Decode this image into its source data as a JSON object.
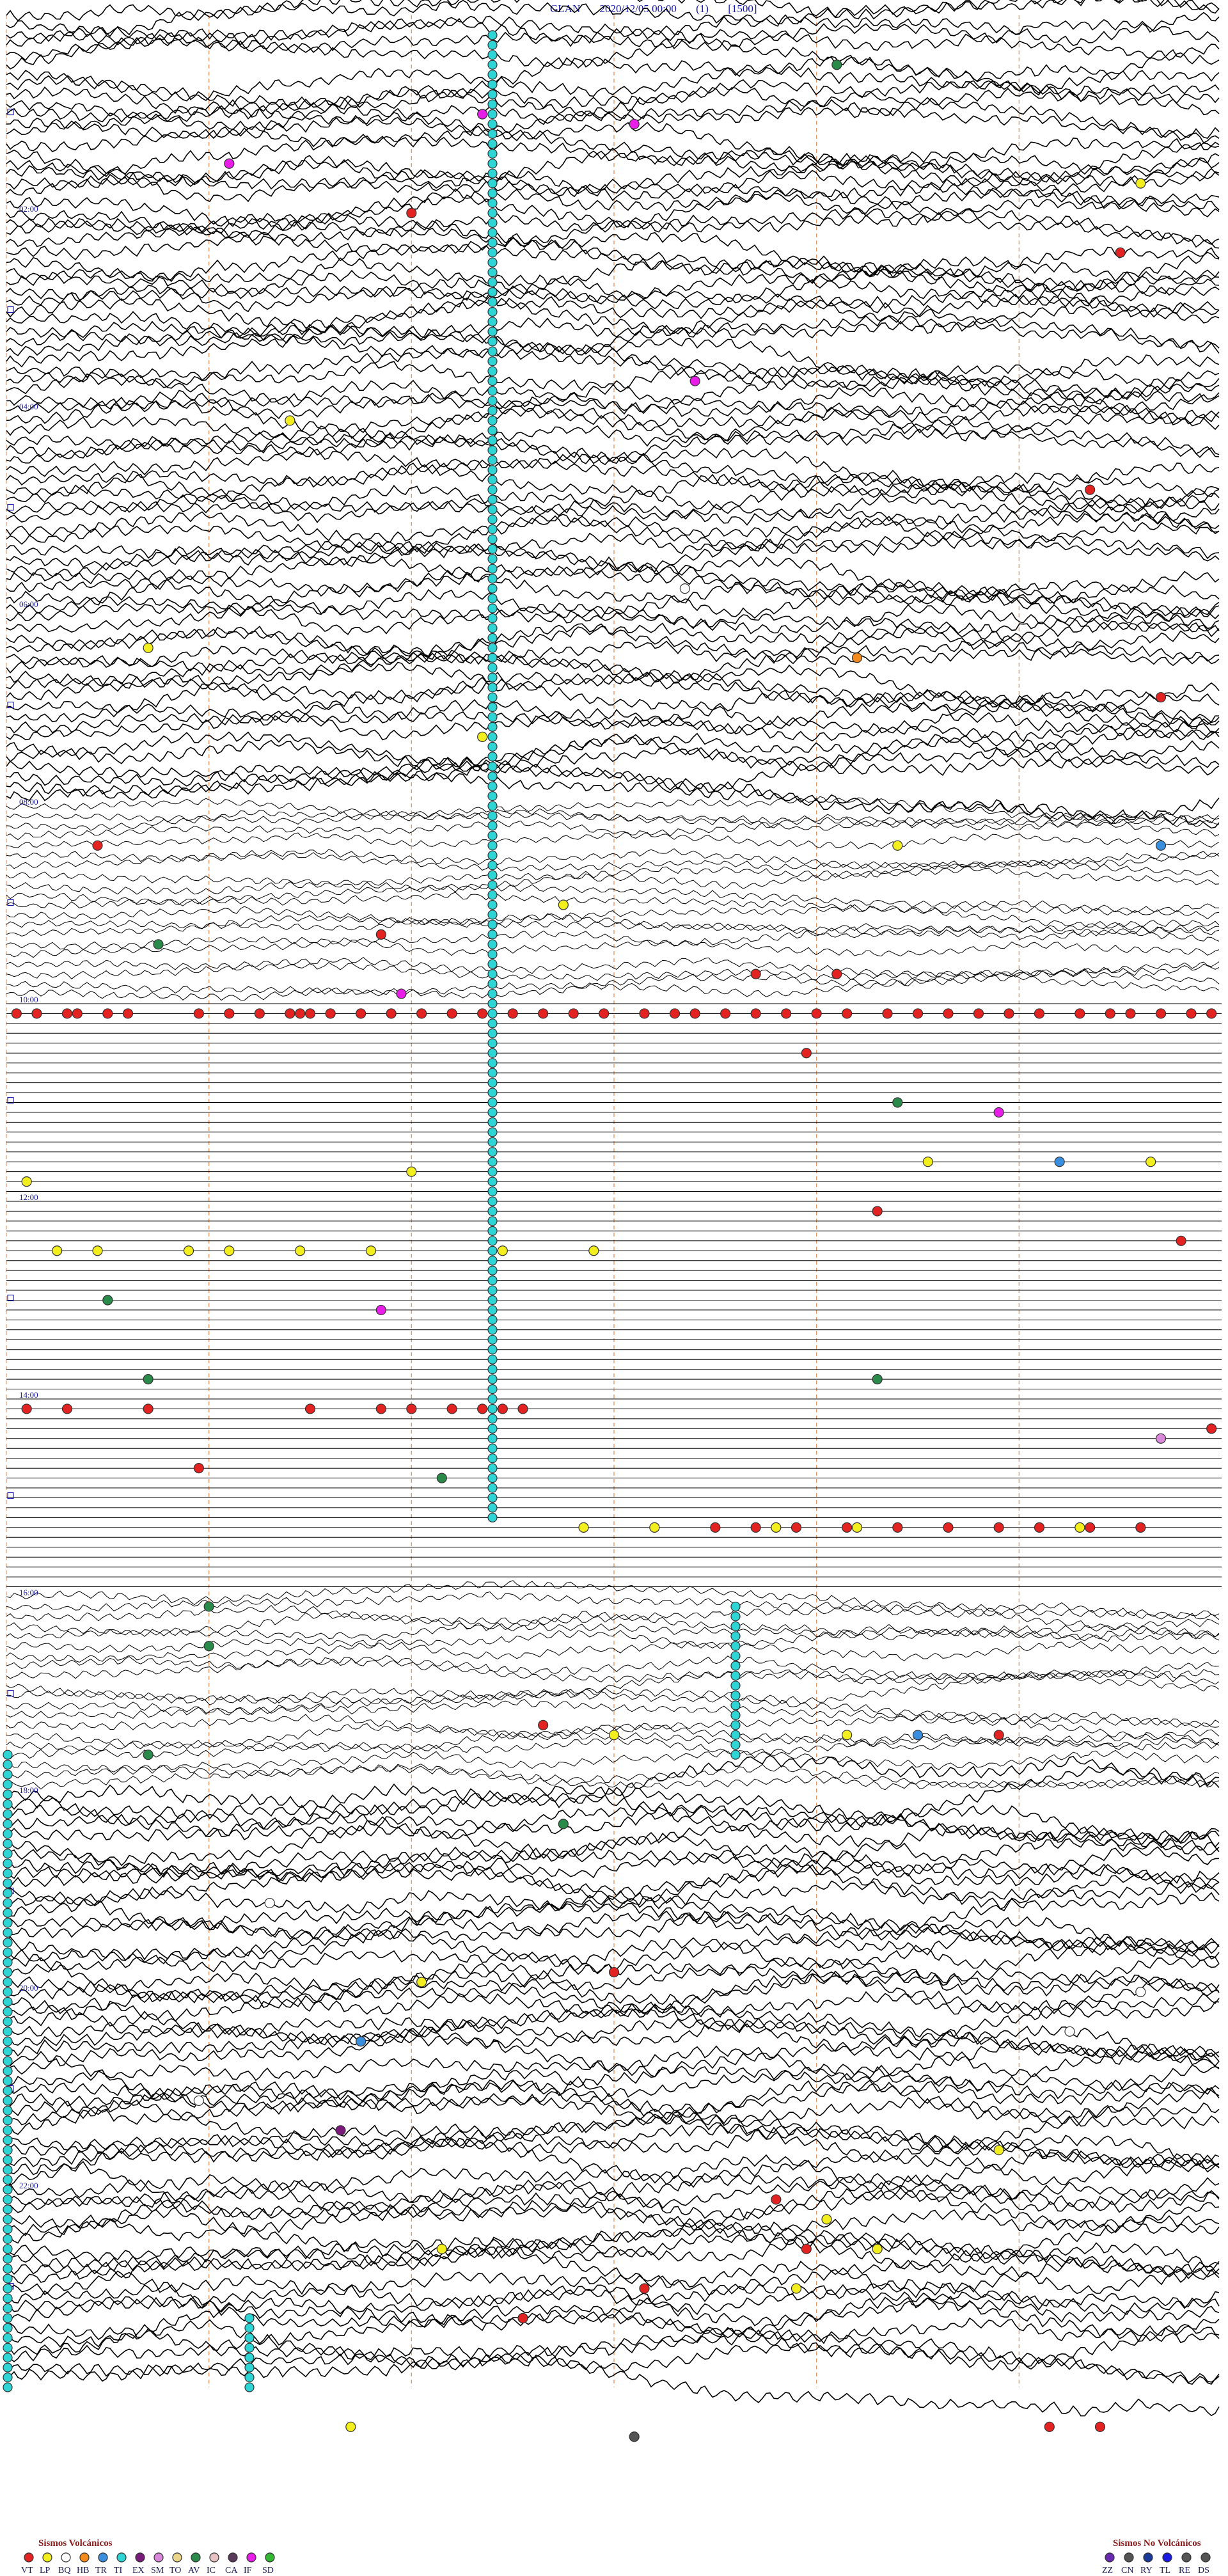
{
  "header": {
    "station": "GLAN",
    "datetime": "2020/12/05 00:00",
    "channel": "(1)",
    "scale": "[1500]"
  },
  "chart_data": {
    "type": "seismogram-helicorder",
    "rows_per_hour": 10,
    "hours": 24,
    "time_labels": [
      "02:00",
      "04:00",
      "06:00",
      "08:00",
      "10:00",
      "12:00",
      "14:00",
      "16:00",
      "18:00",
      "20:00",
      "22:00"
    ],
    "time_label_hours": [
      2,
      4,
      6,
      8,
      10,
      12,
      14,
      16,
      18,
      20,
      22
    ],
    "minute_markers": [
      10,
      20,
      30,
      40,
      50
    ],
    "noise_hours": [
      {
        "from": 0,
        "to": 8,
        "level": 0.9
      },
      {
        "from": 8,
        "to": 10,
        "level": 0.4
      },
      {
        "from": 10,
        "to": 16,
        "level": 0.0
      },
      {
        "from": 16,
        "to": 18,
        "level": 0.5
      },
      {
        "from": 18,
        "to": 24,
        "level": 1.0
      }
    ],
    "event_rows": [
      {
        "hour": 10.1,
        "type": "VT",
        "minutes": [
          0.5,
          1.5,
          3,
          3.5,
          5,
          6,
          9.5,
          11,
          12.5,
          14,
          14.5,
          15,
          16,
          17.5,
          19,
          20.5,
          22,
          23.5,
          25,
          26.5,
          28,
          29.5,
          31.5,
          33,
          34,
          35.5,
          37,
          38.5,
          40,
          41.5,
          43.5,
          45,
          46.5,
          48,
          49.5,
          51,
          53,
          54.5,
          55.5,
          57,
          58.5,
          59.5
        ]
      },
      {
        "hour": 12.5,
        "type": "LP",
        "minutes": [
          2.5,
          4.5,
          9,
          11,
          14.5,
          18,
          24.5,
          29
        ]
      },
      {
        "hour": 14.1,
        "type": "VT",
        "minutes": [
          1,
          3,
          7,
          15,
          18.5,
          20,
          22,
          23.5,
          24.5,
          25.5
        ]
      },
      {
        "hour": 15.3,
        "type": "VT",
        "minutes": [
          35,
          37,
          39,
          41.5,
          44,
          46.5,
          49,
          51,
          53.5,
          56
        ]
      },
      {
        "hour": 15.3,
        "type": "LP",
        "minutes": [
          28.5,
          32,
          38,
          42,
          53
        ]
      }
    ],
    "ti_columns": [
      {
        "minute": 24.0,
        "from_hour": 0.2,
        "to_hour": 15.3
      },
      {
        "minute": 36.0,
        "from_hour": 16.1,
        "to_hour": 17.6
      },
      {
        "minute": 0.0,
        "from_hour": 17.6,
        "to_hour": 24.0
      },
      {
        "minute": 12.0,
        "from_hour": 23.3,
        "to_hour": 24.0
      }
    ],
    "scatter_events": [
      {
        "hour": 0.5,
        "minute": 41,
        "type": "AV"
      },
      {
        "hour": 1.0,
        "minute": 23.5,
        "type": "IF"
      },
      {
        "hour": 1.1,
        "minute": 31,
        "type": "IF"
      },
      {
        "hour": 1.5,
        "minute": 11,
        "type": "IF"
      },
      {
        "hour": 1.7,
        "minute": 56,
        "type": "LP"
      },
      {
        "hour": 2.0,
        "minute": 20,
        "type": "VT"
      },
      {
        "hour": 2.4,
        "minute": 55,
        "type": "VT"
      },
      {
        "hour": 3.7,
        "minute": 34,
        "type": "IF"
      },
      {
        "hour": 4.1,
        "minute": 14,
        "type": "LP"
      },
      {
        "hour": 4.8,
        "minute": 53.5,
        "type": "VT"
      },
      {
        "hour": 5.8,
        "minute": 33.5,
        "type": "BQ"
      },
      {
        "hour": 6.4,
        "minute": 7,
        "type": "LP"
      },
      {
        "hour": 6.5,
        "minute": 42,
        "type": "HB"
      },
      {
        "hour": 6.9,
        "minute": 57,
        "type": "VT"
      },
      {
        "hour": 7.3,
        "minute": 23.5,
        "type": "LP"
      },
      {
        "hour": 8.4,
        "minute": 4.5,
        "type": "VT"
      },
      {
        "hour": 8.4,
        "minute": 44,
        "type": "LP"
      },
      {
        "hour": 8.4,
        "minute": 57,
        "type": "TR"
      },
      {
        "hour": 9.0,
        "minute": 27.5,
        "type": "LP"
      },
      {
        "hour": 9.3,
        "minute": 18.5,
        "type": "VT"
      },
      {
        "hour": 9.4,
        "minute": 7.5,
        "type": "AV"
      },
      {
        "hour": 9.7,
        "minute": 37,
        "type": "VT"
      },
      {
        "hour": 9.7,
        "minute": 41,
        "type": "VT"
      },
      {
        "hour": 9.9,
        "minute": 19.5,
        "type": "IF"
      },
      {
        "hour": 10.5,
        "minute": 39.5,
        "type": "VT"
      },
      {
        "hour": 11.0,
        "minute": 44,
        "type": "AV"
      },
      {
        "hour": 11.1,
        "minute": 49,
        "type": "IF"
      },
      {
        "hour": 11.6,
        "minute": 45.5,
        "type": "LP"
      },
      {
        "hour": 11.6,
        "minute": 52,
        "type": "TR"
      },
      {
        "hour": 11.6,
        "minute": 56.5,
        "type": "LP"
      },
      {
        "hour": 11.8,
        "minute": 1,
        "type": "LP"
      },
      {
        "hour": 11.7,
        "minute": 20,
        "type": "LP"
      },
      {
        "hour": 12.1,
        "minute": 43,
        "type": "VT"
      },
      {
        "hour": 12.4,
        "minute": 58,
        "type": "VT"
      },
      {
        "hour": 13.0,
        "minute": 5,
        "type": "AV"
      },
      {
        "hour": 13.1,
        "minute": 18.5,
        "type": "IF"
      },
      {
        "hour": 13.8,
        "minute": 43,
        "type": "AV"
      },
      {
        "hour": 13.8,
        "minute": 7,
        "type": "AV"
      },
      {
        "hour": 14.3,
        "minute": 59.5,
        "type": "VT"
      },
      {
        "hour": 14.4,
        "minute": 57,
        "type": "SM"
      },
      {
        "hour": 14.7,
        "minute": 9.5,
        "type": "VT"
      },
      {
        "hour": 14.8,
        "minute": 21.5,
        "type": "AV"
      },
      {
        "hour": 16.5,
        "minute": 10,
        "type": "AV"
      },
      {
        "hour": 16.1,
        "minute": 10,
        "type": "AV"
      },
      {
        "hour": 17.3,
        "minute": 26.5,
        "type": "VT"
      },
      {
        "hour": 17.4,
        "minute": 30,
        "type": "LP"
      },
      {
        "hour": 17.4,
        "minute": 41.5,
        "type": "LP"
      },
      {
        "hour": 17.4,
        "minute": 45,
        "type": "TR"
      },
      {
        "hour": 17.4,
        "minute": 49,
        "type": "VT"
      },
      {
        "hour": 17.6,
        "minute": 7,
        "type": "AV"
      },
      {
        "hour": 18.3,
        "minute": 27.5,
        "type": "AV"
      },
      {
        "hour": 19.1,
        "minute": 13,
        "type": "BQ"
      },
      {
        "hour": 19.9,
        "minute": 20.5,
        "type": "LP"
      },
      {
        "hour": 19.8,
        "minute": 30,
        "type": "VT"
      },
      {
        "hour": 20.0,
        "minute": 56,
        "type": "BQ"
      },
      {
        "hour": 20.4,
        "minute": 52.5,
        "type": "BQ"
      },
      {
        "hour": 20.5,
        "minute": 17.5,
        "type": "TR"
      },
      {
        "hour": 21.1,
        "minute": 9.5,
        "type": "BQ"
      },
      {
        "hour": 21.4,
        "minute": 16.5,
        "type": "EX"
      },
      {
        "hour": 21.6,
        "minute": 49,
        "type": "LP"
      },
      {
        "hour": 22.1,
        "minute": 38,
        "type": "VT"
      },
      {
        "hour": 22.3,
        "minute": 40.5,
        "type": "LP"
      },
      {
        "hour": 22.6,
        "minute": 21.5,
        "type": "LP"
      },
      {
        "hour": 22.6,
        "minute": 39.5,
        "type": "VT"
      },
      {
        "hour": 22.6,
        "minute": 43,
        "type": "LP"
      },
      {
        "hour": 23.0,
        "minute": 31.5,
        "type": "VT"
      },
      {
        "hour": 23.0,
        "minute": 39,
        "type": "LP"
      },
      {
        "hour": 23.3,
        "minute": 25.5,
        "type": "VT"
      },
      {
        "hour": 24.4,
        "minute": 51.5,
        "type": "VT"
      },
      {
        "hour": 24.4,
        "minute": 54,
        "type": "VT"
      },
      {
        "hour": 24.4,
        "minute": 17,
        "type": "LP"
      },
      {
        "hour": 24.5,
        "minute": 31,
        "type": "DS"
      }
    ],
    "legend_volcanic": {
      "title": "Sismos Volcánicos",
      "items": [
        {
          "code": "VT",
          "color": "#e32222"
        },
        {
          "code": "LP",
          "color": "#f3ee1e"
        },
        {
          "code": "BQ",
          "color": "#ffffff"
        },
        {
          "code": "HB",
          "color": "#f28a1e"
        },
        {
          "code": "TR",
          "color": "#3a8ede"
        },
        {
          "code": "TI",
          "color": "#2fd5d5"
        },
        {
          "code": "EX",
          "color": "#7a1a7a"
        },
        {
          "code": "SM",
          "color": "#d988d9"
        },
        {
          "code": "TO",
          "color": "#ead58a"
        },
        {
          "code": "AV",
          "color": "#2a8a4a"
        },
        {
          "code": "IC",
          "color": "#e6c2c2"
        },
        {
          "code": "CA",
          "color": "#5a3a5a"
        },
        {
          "code": "IF",
          "color": "#e81ee8"
        },
        {
          "code": "SD",
          "color": "#34b834"
        }
      ]
    },
    "legend_nonvolcanic": {
      "title": "Sismos No Volcánicos",
      "items": [
        {
          "code": "ZZ",
          "color": "#6a2ab0"
        },
        {
          "code": "CN",
          "color": "#555555"
        },
        {
          "code": "RY",
          "color": "#1a3a9a"
        },
        {
          "code": "TL",
          "color": "#1a1ae0"
        },
        {
          "code": "RE",
          "color": "#555555"
        },
        {
          "code": "DS",
          "color": "#555555"
        }
      ]
    },
    "colors": {
      "trace": "#000000",
      "minute_marker": "#e89a6a",
      "time_label": "#1a1aa8",
      "event_outline": "#333333"
    }
  }
}
